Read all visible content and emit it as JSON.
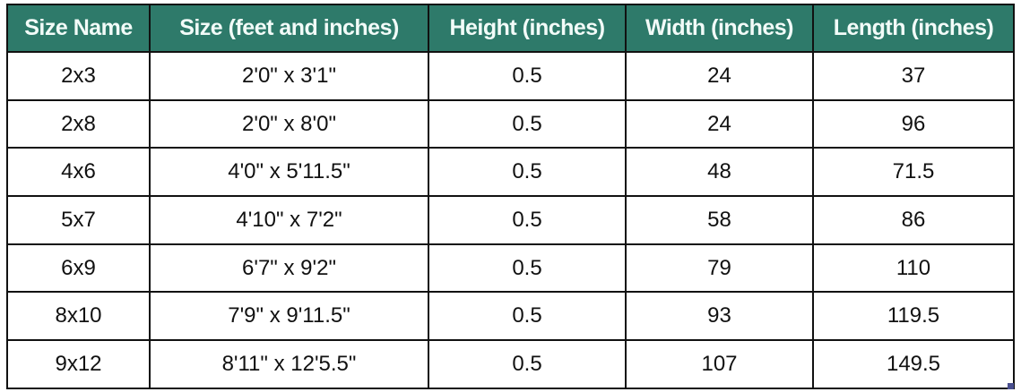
{
  "columns": [
    "Size Name",
    "Size (feet and inches)",
    "Height (inches)",
    "Width (inches)",
    "Length (inches)"
  ],
  "rows": [
    [
      "2x3",
      "2'0\" x 3'1\"",
      "0.5",
      "24",
      "37"
    ],
    [
      "2x8",
      "2'0\" x 8'0\"",
      "0.5",
      "24",
      "96"
    ],
    [
      "4x6",
      "4'0\" x 5'11.5\"",
      "0.5",
      "48",
      "71.5"
    ],
    [
      "5x7",
      "4'10\" x 7'2\"",
      "0.5",
      "58",
      "86"
    ],
    [
      "6x9",
      "6'7\" x 9'2\"",
      "0.5",
      "79",
      "110"
    ],
    [
      "8x10",
      "7'9\" x 9'11.5\"",
      "0.5",
      "93",
      "119.5"
    ],
    [
      "9x12",
      "8'11\" x 12'5.5\"",
      "0.5",
      "107",
      "149.5"
    ]
  ],
  "colors": {
    "header_bg": "#2e7a6a",
    "header_text": "#f2fbf8"
  }
}
